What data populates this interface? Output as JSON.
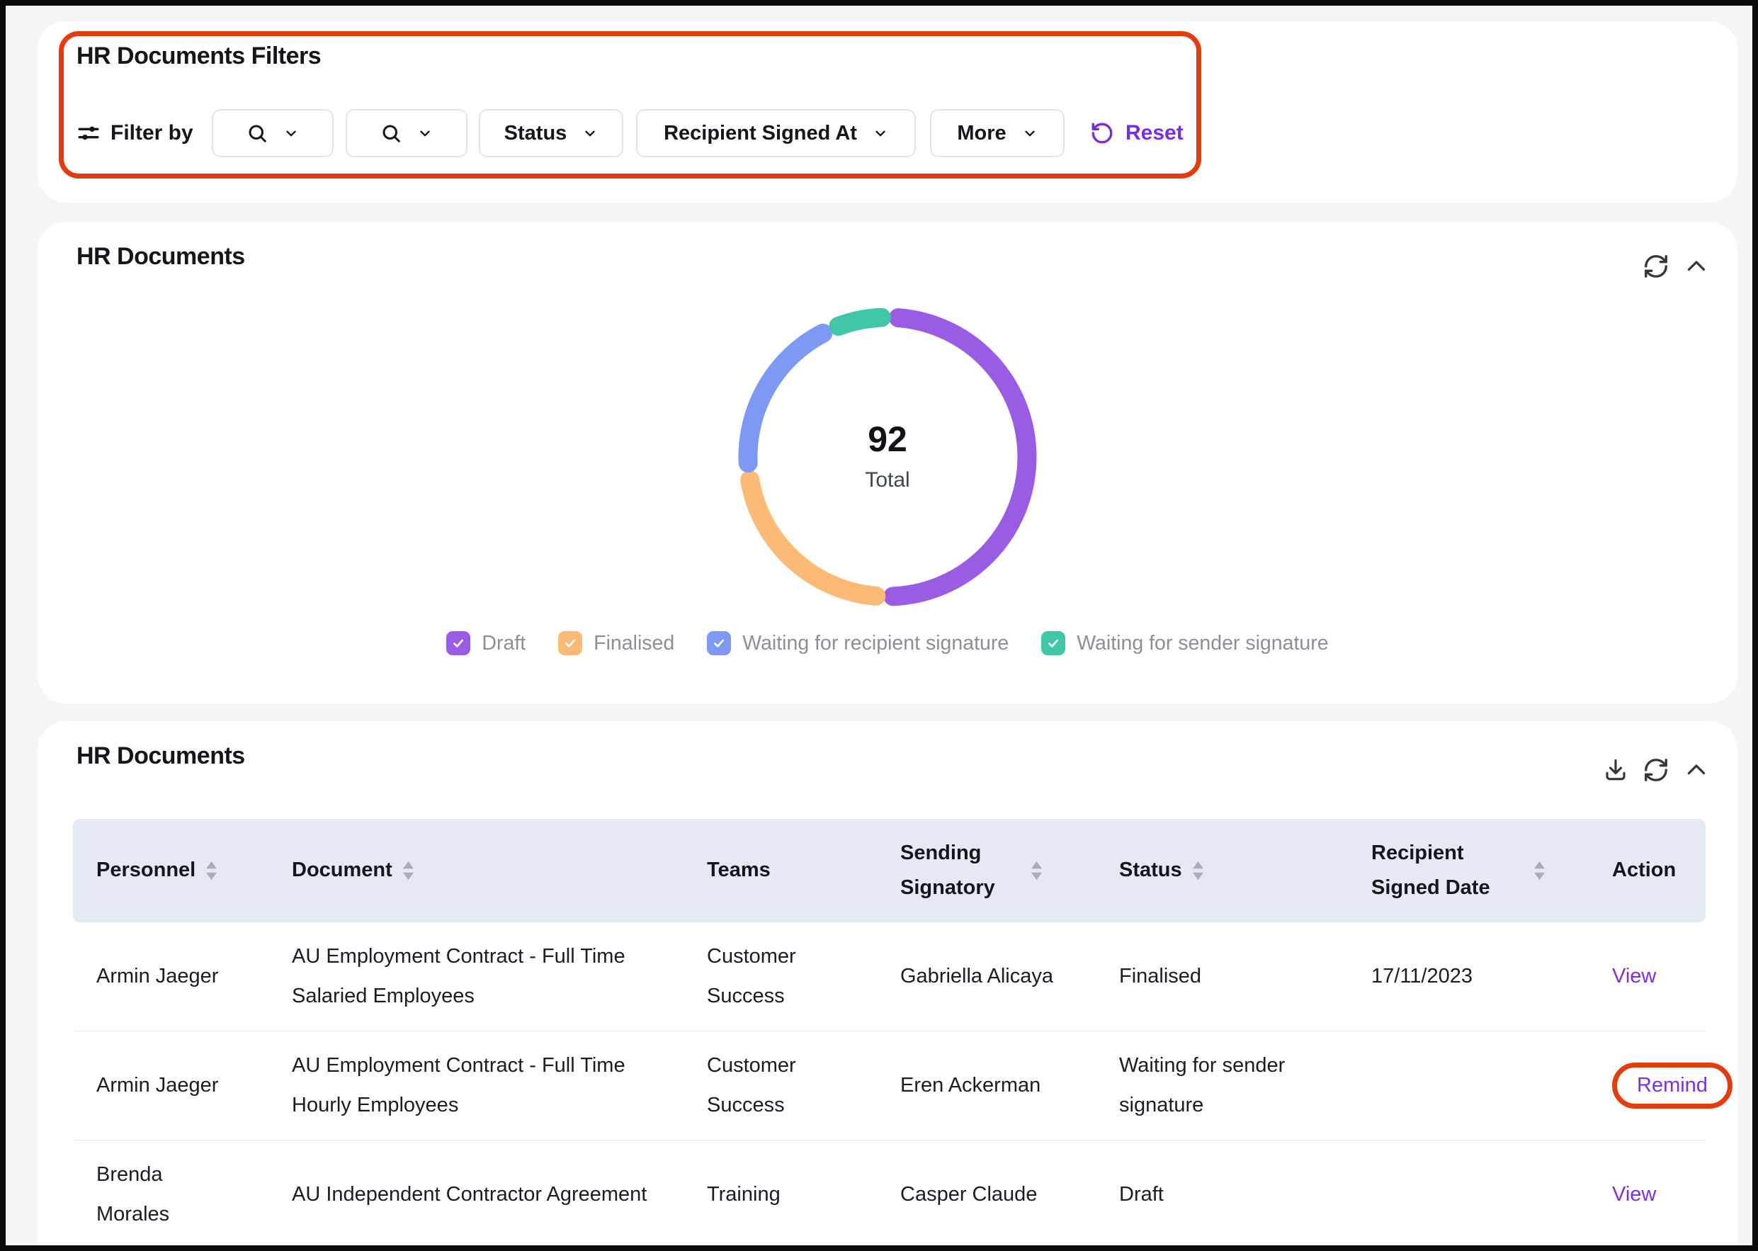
{
  "annotation_color": "#e23c11",
  "filters_card": {
    "title": "HR Documents Filters",
    "filter_by_label": "Filter by",
    "status_label": "Status",
    "recipient_signed_at_label": "Recipient Signed At",
    "more_label": "More",
    "reset_label": "Reset",
    "accent_color": "#7a2de0"
  },
  "chart_card": {
    "title": "HR Documents",
    "total_value": "92",
    "total_label": "Total"
  },
  "chart_data": {
    "type": "pie",
    "title": "HR Documents",
    "center_value": 92,
    "center_label": "Total",
    "legend_position": "bottom",
    "segments": [
      {
        "label": "Draft",
        "value": 48,
        "color": "#9a5ce4"
      },
      {
        "label": "Finalised",
        "value": 21,
        "color": "#fbbb76"
      },
      {
        "label": "Waiting for recipient signature",
        "value": 18,
        "color": "#7e99f3"
      },
      {
        "label": "Waiting for sender signature",
        "value": 5,
        "color": "#41c7a7"
      }
    ]
  },
  "table_card": {
    "title": "HR Documents",
    "columns": [
      {
        "label": "Personnel",
        "sortable": true
      },
      {
        "label": "Document",
        "sortable": true
      },
      {
        "label": "Teams",
        "sortable": false
      },
      {
        "label": "Sending Signatory",
        "sortable": true
      },
      {
        "label": "Status",
        "sortable": true
      },
      {
        "label": "Recipient Signed Date",
        "sortable": true
      },
      {
        "label": "Action",
        "sortable": false
      }
    ],
    "rows": [
      {
        "personnel": "Armin Jaeger",
        "document": "AU Employment Contract - Full Time Salaried Employees",
        "teams": "Customer Success",
        "sending_signatory": "Gabriella Alicaya",
        "status": "Finalised",
        "recipient_signed_date": "17/11/2023",
        "action": "View",
        "action_annotated": false
      },
      {
        "personnel": "Armin Jaeger",
        "document": "AU Employment Contract - Full Time Hourly Employees",
        "teams": "Customer Success",
        "sending_signatory": "Eren Ackerman",
        "status": "Waiting for sender signature",
        "recipient_signed_date": "",
        "action": "Remind",
        "action_annotated": true
      },
      {
        "personnel": "Brenda Morales",
        "document": "AU Independent Contractor Agreement",
        "teams": "Training",
        "sending_signatory": "Casper Claude",
        "status": "Draft",
        "recipient_signed_date": "",
        "action": "View",
        "action_annotated": false
      }
    ]
  }
}
